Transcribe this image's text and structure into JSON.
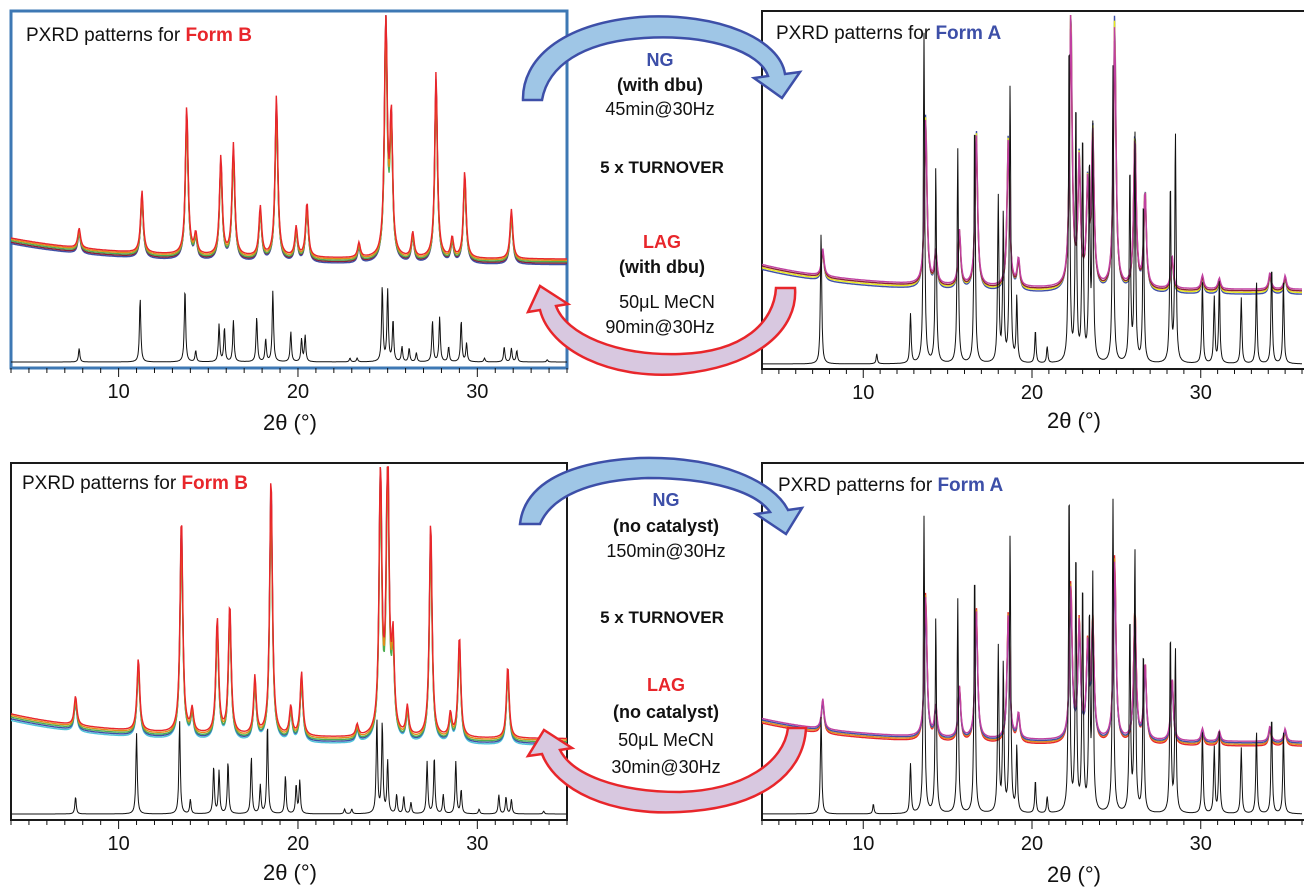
{
  "chart_data": [
    {
      "type": "line",
      "title_prefix": "PXRD patterns for ",
      "title_form": "Form B",
      "form_color": "#e8262b",
      "frame_color": "#3e78b4",
      "xlabel": "2θ (°)",
      "xlim": [
        4,
        35
      ],
      "xticks": [
        10,
        20,
        30
      ],
      "tick_labels": [
        "10",
        "20",
        "30"
      ],
      "ref_peaks": [
        [
          7.8,
          0.18
        ],
        [
          11.2,
          0.85
        ],
        [
          13.7,
          0.98
        ],
        [
          14.3,
          0.15
        ],
        [
          15.6,
          0.5
        ],
        [
          15.9,
          0.45
        ],
        [
          16.4,
          0.55
        ],
        [
          17.7,
          0.6
        ],
        [
          18.2,
          0.3
        ],
        [
          18.6,
          0.95
        ],
        [
          19.6,
          0.4
        ],
        [
          20.2,
          0.3
        ],
        [
          20.4,
          0.35
        ],
        [
          22.9,
          0.05
        ],
        [
          23.3,
          0.05
        ],
        [
          24.7,
          1.0
        ],
        [
          25.0,
          0.95
        ],
        [
          25.3,
          0.55
        ],
        [
          25.8,
          0.2
        ],
        [
          26.2,
          0.18
        ],
        [
          26.6,
          0.12
        ],
        [
          27.5,
          0.55
        ],
        [
          27.9,
          0.6
        ],
        [
          28.4,
          0.2
        ],
        [
          29.1,
          0.55
        ],
        [
          29.4,
          0.25
        ],
        [
          30.4,
          0.05
        ],
        [
          31.5,
          0.2
        ],
        [
          31.9,
          0.18
        ],
        [
          32.2,
          0.15
        ],
        [
          33.9,
          0.03
        ]
      ],
      "exp_peaks": [
        [
          7.8,
          0.08
        ],
        [
          11.3,
          0.25
        ],
        [
          13.8,
          0.6
        ],
        [
          14.3,
          0.08
        ],
        [
          15.7,
          0.4
        ],
        [
          16.4,
          0.45
        ],
        [
          17.9,
          0.2
        ],
        [
          18.8,
          0.65
        ],
        [
          19.9,
          0.12
        ],
        [
          20.5,
          0.22
        ],
        [
          23.4,
          0.06
        ],
        [
          24.9,
          1.0
        ],
        [
          25.2,
          0.55
        ],
        [
          26.4,
          0.1
        ],
        [
          27.7,
          0.75
        ],
        [
          28.6,
          0.08
        ],
        [
          29.3,
          0.35
        ],
        [
          31.9,
          0.2
        ]
      ],
      "series": [
        {
          "color": "#3d4fa8"
        },
        {
          "color": "#8a1f3a"
        },
        {
          "color": "#4caf50"
        },
        {
          "color": "#e08c1a"
        },
        {
          "color": "#e8262b"
        }
      ]
    },
    {
      "type": "line",
      "title_prefix": "PXRD patterns for ",
      "title_form": "Form A",
      "form_color": "#3d4fa8",
      "frame_color": "#1a1a1a",
      "xlabel": "2θ (°)",
      "xlim": [
        4,
        36
      ],
      "xticks": [
        10,
        20,
        30
      ],
      "tick_labels": [
        "10",
        "20",
        "30"
      ],
      "ref_peaks": [
        [
          7.5,
          0.4
        ],
        [
          10.8,
          0.03
        ],
        [
          12.8,
          0.15
        ],
        [
          13.6,
          1.0
        ],
        [
          14.3,
          0.6
        ],
        [
          15.6,
          0.65
        ],
        [
          16.6,
          0.75
        ],
        [
          18.0,
          0.5
        ],
        [
          18.3,
          0.45
        ],
        [
          18.7,
          0.85
        ],
        [
          19.1,
          0.2
        ],
        [
          20.2,
          0.1
        ],
        [
          20.9,
          0.05
        ],
        [
          22.2,
          1.0
        ],
        [
          22.6,
          0.8
        ],
        [
          23.0,
          0.7
        ],
        [
          23.4,
          0.6
        ],
        [
          23.6,
          0.7
        ],
        [
          24.8,
          0.9
        ],
        [
          25.8,
          0.6
        ],
        [
          26.1,
          0.7
        ],
        [
          26.6,
          0.5
        ],
        [
          28.2,
          0.55
        ],
        [
          28.5,
          0.7
        ],
        [
          30.1,
          0.25
        ],
        [
          30.8,
          0.2
        ],
        [
          31.1,
          0.25
        ],
        [
          32.4,
          0.2
        ],
        [
          33.3,
          0.25
        ],
        [
          34.2,
          0.3
        ],
        [
          34.9,
          0.25
        ]
      ],
      "exp_peaks": [
        [
          7.6,
          0.1
        ],
        [
          13.7,
          0.6
        ],
        [
          14.3,
          0.12
        ],
        [
          15.7,
          0.2
        ],
        [
          16.7,
          0.55
        ],
        [
          18.6,
          0.55
        ],
        [
          19.2,
          0.1
        ],
        [
          22.3,
          1.0
        ],
        [
          22.8,
          0.45
        ],
        [
          23.3,
          0.35
        ],
        [
          23.6,
          0.55
        ],
        [
          24.9,
          0.95
        ],
        [
          26.1,
          0.55
        ],
        [
          26.7,
          0.35
        ],
        [
          28.3,
          0.12
        ],
        [
          30.1,
          0.05
        ],
        [
          31.1,
          0.04
        ],
        [
          34.1,
          0.06
        ],
        [
          35.0,
          0.05
        ]
      ],
      "series": [
        {
          "color": "#3d4fa8"
        },
        {
          "color": "#e8e81a"
        },
        {
          "color": "#8a1f3a"
        },
        {
          "color": "#c040a0"
        }
      ]
    },
    {
      "type": "line",
      "title_prefix": "PXRD patterns for ",
      "title_form": "Form B",
      "form_color": "#e8262b",
      "frame_color": "#1a1a1a",
      "xlabel": "2θ (°)",
      "xlim": [
        4,
        35
      ],
      "xticks": [
        10,
        20,
        30
      ],
      "tick_labels": [
        "10",
        "20",
        "30"
      ],
      "ref_peaks": [
        [
          7.6,
          0.18
        ],
        [
          11.0,
          0.85
        ],
        [
          13.4,
          0.98
        ],
        [
          14.0,
          0.15
        ],
        [
          15.3,
          0.5
        ],
        [
          15.6,
          0.45
        ],
        [
          16.1,
          0.55
        ],
        [
          17.4,
          0.6
        ],
        [
          17.9,
          0.3
        ],
        [
          18.3,
          0.95
        ],
        [
          19.3,
          0.4
        ],
        [
          19.9,
          0.3
        ],
        [
          20.1,
          0.35
        ],
        [
          22.6,
          0.05
        ],
        [
          23.0,
          0.05
        ],
        [
          24.4,
          1.0
        ],
        [
          24.7,
          0.95
        ],
        [
          25.0,
          0.55
        ],
        [
          25.5,
          0.2
        ],
        [
          25.9,
          0.18
        ],
        [
          26.3,
          0.12
        ],
        [
          27.2,
          0.55
        ],
        [
          27.6,
          0.6
        ],
        [
          28.1,
          0.2
        ],
        [
          28.8,
          0.55
        ],
        [
          29.1,
          0.25
        ],
        [
          30.1,
          0.05
        ],
        [
          31.2,
          0.2
        ],
        [
          31.6,
          0.18
        ],
        [
          31.9,
          0.15
        ],
        [
          33.7,
          0.03
        ]
      ],
      "exp_peaks": [
        [
          7.6,
          0.1
        ],
        [
          11.1,
          0.25
        ],
        [
          13.5,
          0.75
        ],
        [
          14.1,
          0.08
        ],
        [
          15.5,
          0.4
        ],
        [
          16.2,
          0.45
        ],
        [
          17.6,
          0.2
        ],
        [
          18.5,
          0.9
        ],
        [
          19.6,
          0.1
        ],
        [
          20.2,
          0.22
        ],
        [
          23.3,
          0.04
        ],
        [
          24.6,
          0.95
        ],
        [
          25.0,
          1.0
        ],
        [
          25.3,
          0.3
        ],
        [
          26.1,
          0.1
        ],
        [
          27.4,
          0.75
        ],
        [
          28.5,
          0.08
        ],
        [
          29.0,
          0.35
        ],
        [
          31.7,
          0.25
        ]
      ],
      "series": [
        {
          "color": "#4fc3d9"
        },
        {
          "color": "#3d4fa8"
        },
        {
          "color": "#4caf50"
        },
        {
          "color": "#e08c1a"
        },
        {
          "color": "#e8262b"
        }
      ]
    },
    {
      "type": "line",
      "title_prefix": "PXRD patterns for ",
      "title_form": "Form A",
      "form_color": "#3d4fa8",
      "frame_color": "#1a1a1a",
      "xlabel": "2θ (°)",
      "xlim": [
        4,
        36
      ],
      "xticks": [
        10,
        20,
        30
      ],
      "tick_labels": [
        "10",
        "20",
        "30"
      ],
      "ref_peaks": [
        [
          7.5,
          0.3
        ],
        [
          10.6,
          0.03
        ],
        [
          12.8,
          0.15
        ],
        [
          13.6,
          0.9
        ],
        [
          14.3,
          0.6
        ],
        [
          15.6,
          0.65
        ],
        [
          16.6,
          0.75
        ],
        [
          18.0,
          0.5
        ],
        [
          18.3,
          0.45
        ],
        [
          18.7,
          0.85
        ],
        [
          19.1,
          0.2
        ],
        [
          20.2,
          0.1
        ],
        [
          20.9,
          0.05
        ],
        [
          22.2,
          1.0
        ],
        [
          22.6,
          0.8
        ],
        [
          23.0,
          0.7
        ],
        [
          23.4,
          0.6
        ],
        [
          23.6,
          0.7
        ],
        [
          24.8,
          0.95
        ],
        [
          25.8,
          0.6
        ],
        [
          26.1,
          0.8
        ],
        [
          26.6,
          0.5
        ],
        [
          28.2,
          0.55
        ],
        [
          28.5,
          0.5
        ],
        [
          30.1,
          0.25
        ],
        [
          30.8,
          0.2
        ],
        [
          31.1,
          0.25
        ],
        [
          32.4,
          0.2
        ],
        [
          33.3,
          0.25
        ],
        [
          34.2,
          0.3
        ],
        [
          34.9,
          0.25
        ]
      ],
      "exp_peaks": [
        [
          7.6,
          0.12
        ],
        [
          13.7,
          0.55
        ],
        [
          14.3,
          0.12
        ],
        [
          15.7,
          0.2
        ],
        [
          16.7,
          0.5
        ],
        [
          18.6,
          0.5
        ],
        [
          19.2,
          0.1
        ],
        [
          22.3,
          0.6
        ],
        [
          22.8,
          0.45
        ],
        [
          23.3,
          0.35
        ],
        [
          23.6,
          0.45
        ],
        [
          24.9,
          0.7
        ],
        [
          26.1,
          0.5
        ],
        [
          26.7,
          0.3
        ],
        [
          28.3,
          0.25
        ],
        [
          30.1,
          0.05
        ],
        [
          31.1,
          0.04
        ],
        [
          34.1,
          0.06
        ],
        [
          35.0,
          0.05
        ]
      ],
      "series": [
        {
          "color": "#e8262b"
        },
        {
          "color": "#e08c1a"
        },
        {
          "color": "#3d4fa8"
        },
        {
          "color": "#c040a0"
        }
      ]
    }
  ],
  "arrows": [
    {
      "ng_label": "NG",
      "ng_condition": "(with dbu)",
      "ng_time": "45min@30Hz",
      "turnover": "5 x TURNOVER",
      "lag_label": "LAG",
      "lag_condition": "(with dbu)",
      "lag_solvent": "50μL MeCN",
      "lag_time": "90min@30Hz"
    },
    {
      "ng_label": "NG",
      "ng_condition": "(no catalyst)",
      "ng_time": "150min@30Hz",
      "turnover": "5 x TURNOVER",
      "lag_label": "LAG",
      "lag_condition": "(no catalyst)",
      "lag_solvent": "50μL MeCN",
      "lag_time": "30min@30Hz"
    }
  ],
  "colors": {
    "ng": "#3d4fa8",
    "lag": "#e8262b",
    "ng_fill": "#9fc6e6",
    "lag_fill": "#d8c8e0",
    "reference": "#111111"
  }
}
